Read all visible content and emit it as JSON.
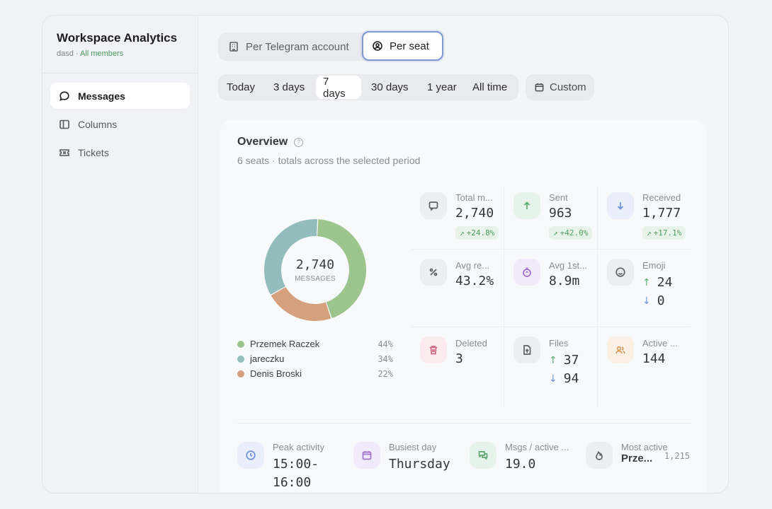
{
  "sidebar": {
    "title": "Workspace Analytics",
    "workspace": "dasd",
    "separator": " · ",
    "scope": "All members",
    "items": [
      {
        "label": "Messages",
        "icon": "message-icon"
      },
      {
        "label": "Columns",
        "icon": "columns-icon"
      },
      {
        "label": "Tickets",
        "icon": "ticket-icon"
      }
    ]
  },
  "scope_toggle": {
    "options": [
      {
        "label": "Per Telegram account",
        "icon": "building-icon"
      },
      {
        "label": "Per seat",
        "icon": "user-circle-icon"
      }
    ],
    "selected": "Per seat"
  },
  "periods": {
    "options": [
      "Today",
      "3 days",
      "7 days",
      "30 days",
      "1 year",
      "All time"
    ],
    "selected": "7 days",
    "custom_label": "Custom"
  },
  "overview": {
    "title": "Overview",
    "subtitle": "6 seats · totals across the selected period",
    "donut": {
      "total": "2,740",
      "unit": "MESSAGES",
      "segments": [
        {
          "name": "Przemek Raczek",
          "percent": 44,
          "label": "44%",
          "color": "#9cc48d"
        },
        {
          "name": "Denis Broski",
          "percent": 22,
          "label": "22%",
          "color": "#d4a07e"
        },
        {
          "name": "jareczku",
          "percent": 34,
          "label": "34%",
          "color": "#93bdbd"
        }
      ],
      "legend": [
        {
          "name": "Przemek Raczek",
          "label": "44%",
          "color": "#9cc48d"
        },
        {
          "name": "jareczku",
          "label": "34%",
          "color": "#93bdbd"
        },
        {
          "name": "Denis Broski",
          "label": "22%",
          "color": "#d4a07e"
        }
      ]
    },
    "metrics": {
      "total": {
        "label": "Total m...",
        "value": "2,740",
        "trend": "+24.8%"
      },
      "sent": {
        "label": "Sent",
        "value": "963",
        "trend": "+42.0%"
      },
      "received": {
        "label": "Received",
        "value": "1,777",
        "trend": "+17.1%"
      },
      "avg_reply": {
        "label": "Avg re...",
        "value": "43.2%"
      },
      "avg_first": {
        "label": "Avg 1st...",
        "value": "8.9m"
      },
      "emoji": {
        "label": "Emoji",
        "up": "24",
        "down": "0"
      },
      "deleted": {
        "label": "Deleted",
        "value": "3"
      },
      "files": {
        "label": "Files",
        "up": "37",
        "down": "94"
      },
      "active": {
        "label": "Active ...",
        "value": "144"
      }
    },
    "stats": {
      "peak": {
        "label": "Peak activity",
        "value_line1": "15:00-",
        "value_line2": "16:00"
      },
      "busiest": {
        "label": "Busiest day",
        "value": "Thursday"
      },
      "msgs_active": {
        "label": "Msgs / active ...",
        "value": "19.0"
      },
      "most_active": {
        "label": "Most active",
        "name": "Prze...",
        "count": "1,215"
      }
    }
  },
  "colors": {
    "accent_ring": "#7d9bd0",
    "trend_green": "#4f9d61",
    "up_green": "#5aa772",
    "down_blue": "#6f8fd6"
  }
}
